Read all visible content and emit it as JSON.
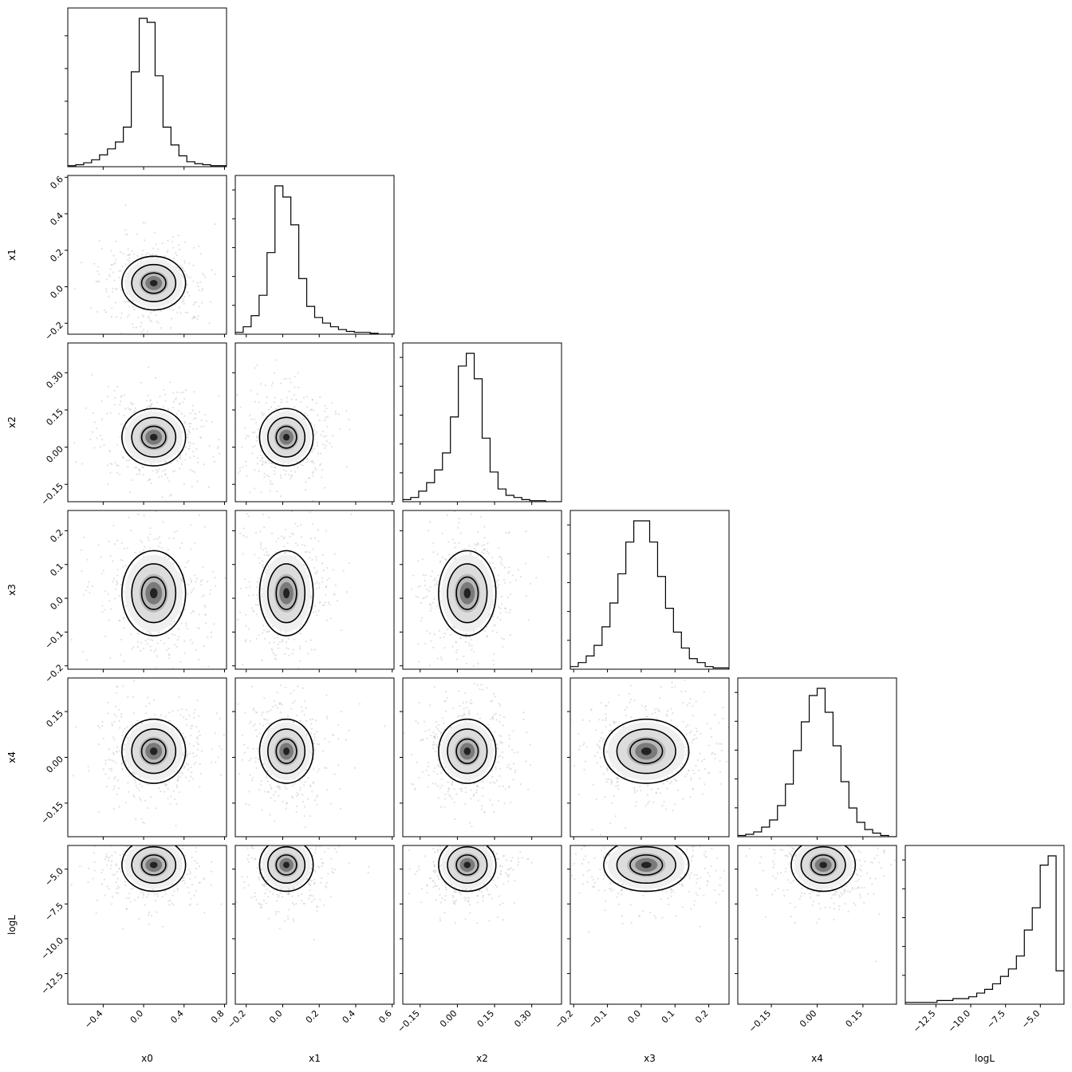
{
  "chart_data": {
    "type": "corner",
    "parameters": [
      "x0",
      "x1",
      "x2",
      "x3",
      "x4",
      "logL"
    ],
    "axis_labels": [
      "x0",
      "x1",
      "x2",
      "x3",
      "x4",
      "logL"
    ],
    "ranges": [
      [
        -0.75,
        0.82
      ],
      [
        -0.26,
        0.61
      ],
      [
        -0.22,
        0.42
      ],
      [
        -0.21,
        0.26
      ],
      [
        -0.26,
        0.26
      ],
      [
        -14.7,
        -3.3
      ]
    ],
    "x_ticks": [
      [
        -0.4,
        0.0,
        0.4,
        0.8
      ],
      [
        -0.2,
        0.0,
        0.2,
        0.4,
        0.6
      ],
      [
        -0.15,
        0.0,
        0.15,
        0.3
      ],
      [
        -0.2,
        -0.1,
        0.0,
        0.1,
        0.2
      ],
      [
        -0.15,
        0.0,
        0.15
      ],
      [
        -12.5,
        -10.0,
        -7.5,
        -5.0
      ]
    ],
    "x_tick_labels": [
      [
        "−0.4",
        "0.0",
        "0.4",
        "0.8"
      ],
      [
        "−0.2",
        "0.0",
        "0.2",
        "0.4",
        "0.6"
      ],
      [
        "−0.15",
        "0.00",
        "0.15",
        "0.30"
      ],
      [
        "−0.2",
        "−0.1",
        "0.0",
        "0.1",
        "0.2"
      ],
      [
        "−0.15",
        "0.00",
        "0.15"
      ],
      [
        "−12.5",
        "−10.0",
        "−7.5",
        "−5.0"
      ]
    ],
    "y_ticks": [
      null,
      [
        -0.2,
        0.0,
        0.2,
        0.4,
        0.6
      ],
      [
        -0.15,
        0.0,
        0.15,
        0.3
      ],
      [
        -0.2,
        -0.1,
        0.0,
        0.1,
        0.2
      ],
      [
        -0.15,
        0.0,
        0.15
      ],
      [
        -12.5,
        -10.0,
        -7.5,
        -5.0
      ]
    ],
    "y_tick_labels": [
      null,
      [
        "−0.2",
        "0.0",
        "0.2",
        "0.4",
        "0.6"
      ],
      [
        "−0.15",
        "0.00",
        "0.15",
        "0.30"
      ],
      [
        "−0.2",
        "−0.1",
        "0.0",
        "0.1",
        "0.2"
      ],
      [
        "−0.15",
        "0.00",
        "0.15"
      ],
      [
        "−12.5",
        "−10.0",
        "−7.5",
        "−5.0"
      ]
    ],
    "histograms": [
      [
        1,
        2,
        4,
        7,
        12,
        18,
        25,
        40,
        96,
        150,
        146,
        92,
        40,
        22,
        11,
        5,
        3,
        2,
        1,
        1
      ],
      [
        2,
        8,
        20,
        42,
        88,
        160,
        148,
        118,
        60,
        30,
        18,
        12,
        8,
        5,
        3,
        2,
        2,
        1,
        0,
        0
      ],
      [
        2,
        4,
        10,
        18,
        30,
        46,
        80,
        128,
        140,
        116,
        60,
        28,
        12,
        6,
        4,
        2,
        1,
        1,
        0,
        0
      ],
      [
        2,
        5,
        10,
        18,
        32,
        50,
        72,
        96,
        112,
        112,
        96,
        70,
        46,
        28,
        16,
        8,
        5,
        2,
        1,
        1
      ],
      [
        1,
        2,
        4,
        8,
        14,
        26,
        44,
        72,
        96,
        118,
        124,
        104,
        76,
        46,
        24,
        12,
        6,
        3,
        1,
        0
      ],
      [
        1,
        1,
        1,
        1,
        2,
        2,
        3,
        3,
        4,
        6,
        8,
        11,
        15,
        19,
        26,
        40,
        52,
        75,
        80,
        18
      ]
    ],
    "centers": [
      0.1,
      0.02,
      0.04,
      0.015,
      0.02,
      -4.7
    ],
    "spreads": [
      0.15,
      0.07,
      0.055,
      0.06,
      0.05,
      0.9
    ],
    "grid": false,
    "legend": "none"
  }
}
